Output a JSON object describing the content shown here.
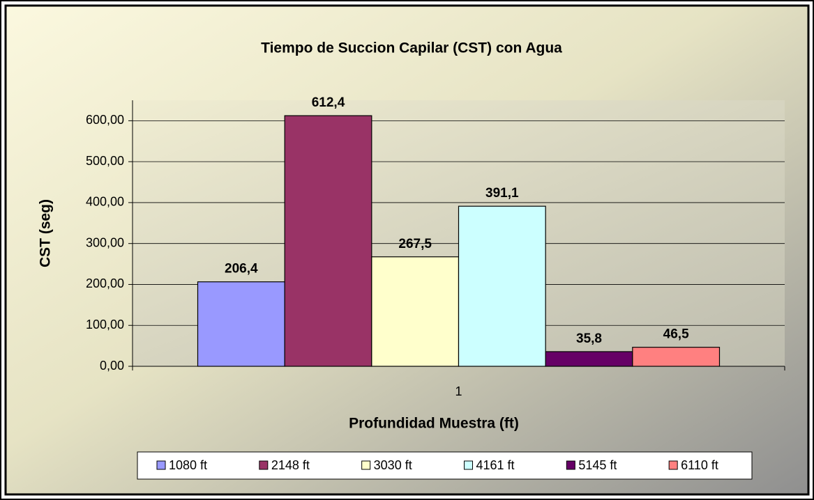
{
  "chart_data": {
    "type": "bar",
    "title": "Tiempo de Succion Capilar (CST) con Agua",
    "x_label": "Profundidad Muestra (ft)",
    "y_label": "CST (seg)",
    "categories": [
      "1"
    ],
    "series": [
      {
        "name": "1080 ft",
        "color": "#9999ff",
        "values": [
          206.4
        ],
        "value_labels": [
          "206,4"
        ]
      },
      {
        "name": "2148 ft",
        "color": "#993366",
        "values": [
          612.4
        ],
        "value_labels": [
          "612,4"
        ]
      },
      {
        "name": "3030 ft",
        "color": "#ffffcc",
        "values": [
          267.5
        ],
        "value_labels": [
          "267,5"
        ]
      },
      {
        "name": "4161 ft",
        "color": "#ccffff",
        "values": [
          391.1
        ],
        "value_labels": [
          "391,1"
        ]
      },
      {
        "name": "5145 ft",
        "color": "#660066",
        "values": [
          35.8
        ],
        "value_labels": [
          "35,8"
        ]
      },
      {
        "name": "6110 ft",
        "color": "#ff8080",
        "values": [
          46.5
        ],
        "value_labels": [
          "46,5"
        ]
      }
    ],
    "ylim": [
      0,
      650
    ],
    "yticks": [
      {
        "value": 0,
        "label": "0,00"
      },
      {
        "value": 100,
        "label": "100,00"
      },
      {
        "value": 200,
        "label": "200,00"
      },
      {
        "value": 300,
        "label": "300,00"
      },
      {
        "value": 400,
        "label": "400,00"
      },
      {
        "value": 500,
        "label": "500,00"
      },
      {
        "value": 600,
        "label": "600,00"
      }
    ],
    "grid": true,
    "legend": "bottom"
  }
}
